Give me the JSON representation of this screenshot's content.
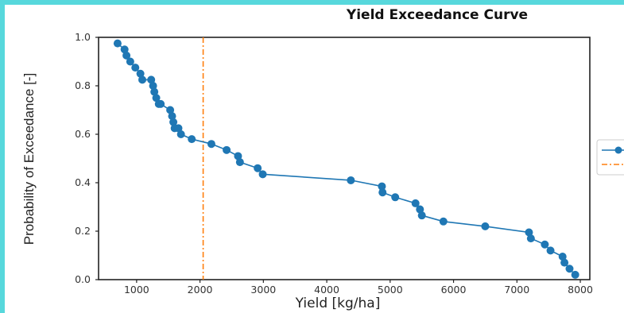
{
  "colors": {
    "border": "#57d8dc",
    "series": "#1f77b4",
    "threshold": "#ff7f0e"
  },
  "chart_data": {
    "type": "line",
    "title": "Yield Exceedance Curve",
    "xlabel": "Yield [kg/ha]",
    "ylabel": "Probability of Exceedance [-]",
    "xlim": [
      400,
      8150
    ],
    "ylim": [
      0,
      1.0
    ],
    "xticks": [
      "1000",
      "2000",
      "3000",
      "4000",
      "5000",
      "6000",
      "7000",
      "8000"
    ],
    "yticks": [
      "0.0",
      "0.2",
      "0.4",
      "0.6",
      "0.8",
      "1.0"
    ],
    "grid": false,
    "legend_placement": "right, outside plot (clipped)",
    "series": [
      {
        "x": [
          700,
          810,
          840,
          900,
          980,
          1060,
          1090,
          1230,
          1260,
          1280,
          1310,
          1350,
          1380,
          1530,
          1560,
          1580,
          1600,
          1660,
          1700,
          1870,
          2180,
          2420,
          2600,
          2630,
          2910,
          2990,
          4380,
          4870,
          4880,
          5080,
          5400,
          5470,
          5500,
          5840,
          6500,
          7190,
          7220,
          7440,
          7530,
          7720,
          7750,
          7830,
          7920
        ],
        "y": [
          0.975,
          0.95,
          0.925,
          0.9,
          0.875,
          0.85,
          0.825,
          0.825,
          0.8,
          0.775,
          0.75,
          0.725,
          0.725,
          0.7,
          0.675,
          0.65,
          0.625,
          0.625,
          0.6,
          0.58,
          0.56,
          0.535,
          0.51,
          0.485,
          0.46,
          0.435,
          0.41,
          0.385,
          0.36,
          0.34,
          0.315,
          0.29,
          0.265,
          0.24,
          0.22,
          0.195,
          0.17,
          0.145,
          0.12,
          0.095,
          0.07,
          0.045,
          0.02
        ]
      }
    ],
    "threshold_x": 2050
  }
}
